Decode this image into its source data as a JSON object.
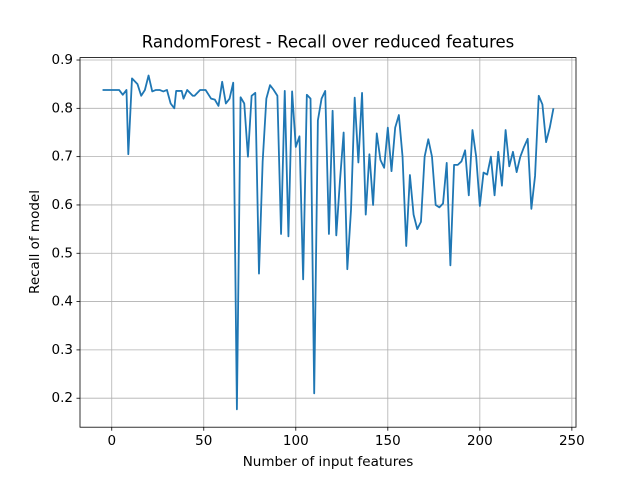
{
  "chart_data": {
    "type": "line",
    "title": "RandomForest - Recall over reduced features",
    "xlabel": "Number of input features",
    "ylabel": "Recall of model",
    "color": "#1f77b4",
    "grid": true,
    "x": [
      -5,
      -2,
      1,
      4,
      6,
      8,
      9,
      11,
      14,
      16,
      18,
      20,
      22,
      24,
      26,
      28,
      30,
      32,
      34,
      35,
      38,
      39,
      41,
      44,
      45,
      48,
      51,
      54,
      56,
      58,
      60,
      62,
      64,
      66,
      68,
      70,
      72,
      74,
      76,
      78,
      80,
      82,
      84,
      86,
      88,
      90,
      92,
      94,
      96,
      98,
      100,
      102,
      104,
      106,
      108,
      110,
      112,
      114,
      116,
      118,
      120,
      122,
      124,
      126,
      128,
      130,
      132,
      134,
      136,
      138,
      140,
      142,
      144,
      146,
      148,
      150,
      152,
      154,
      156,
      158,
      160,
      162,
      164,
      166,
      168,
      170,
      172,
      174,
      176,
      178,
      180,
      182,
      184,
      186,
      188,
      190,
      192,
      194,
      196,
      198,
      200,
      202,
      204,
      206,
      208,
      210,
      212,
      214,
      216,
      218,
      220,
      222,
      224,
      226,
      228,
      230,
      232,
      234,
      236,
      238,
      240
    ],
    "values": [
      0.838,
      0.838,
      0.838,
      0.838,
      0.828,
      0.838,
      0.705,
      0.862,
      0.85,
      0.826,
      0.838,
      0.868,
      0.835,
      0.838,
      0.838,
      0.835,
      0.838,
      0.81,
      0.8,
      0.836,
      0.836,
      0.82,
      0.838,
      0.826,
      0.826,
      0.838,
      0.838,
      0.82,
      0.818,
      0.805,
      0.855,
      0.81,
      0.82,
      0.853,
      0.177,
      0.823,
      0.81,
      0.7,
      0.826,
      0.832,
      0.458,
      0.69,
      0.82,
      0.848,
      0.838,
      0.826,
      0.54,
      0.836,
      0.535,
      0.835,
      0.72,
      0.742,
      0.446,
      0.828,
      0.82,
      0.21,
      0.775,
      0.82,
      0.836,
      0.54,
      0.795,
      0.537,
      0.65,
      0.75,
      0.467,
      0.59,
      0.822,
      0.688,
      0.832,
      0.58,
      0.705,
      0.6,
      0.748,
      0.693,
      0.677,
      0.76,
      0.67,
      0.76,
      0.786,
      0.7,
      0.515,
      0.662,
      0.58,
      0.55,
      0.565,
      0.7,
      0.736,
      0.7,
      0.6,
      0.595,
      0.603,
      0.687,
      0.475,
      0.683,
      0.683,
      0.69,
      0.713,
      0.62,
      0.755,
      0.7,
      0.598,
      0.667,
      0.663,
      0.7,
      0.62,
      0.71,
      0.64,
      0.755,
      0.68,
      0.71,
      0.668,
      0.7,
      0.72,
      0.737,
      0.592,
      0.66,
      0.826,
      0.808,
      0.73,
      0.76,
      0.8
    ],
    "xlim": [
      -17.25,
      252.25
    ],
    "ylim": [
      0.14,
      0.905
    ],
    "xticks": [
      0,
      50,
      100,
      150,
      200,
      250
    ],
    "yticks": [
      0.2,
      0.3,
      0.4,
      0.5,
      0.6,
      0.7,
      0.8,
      0.9
    ]
  }
}
